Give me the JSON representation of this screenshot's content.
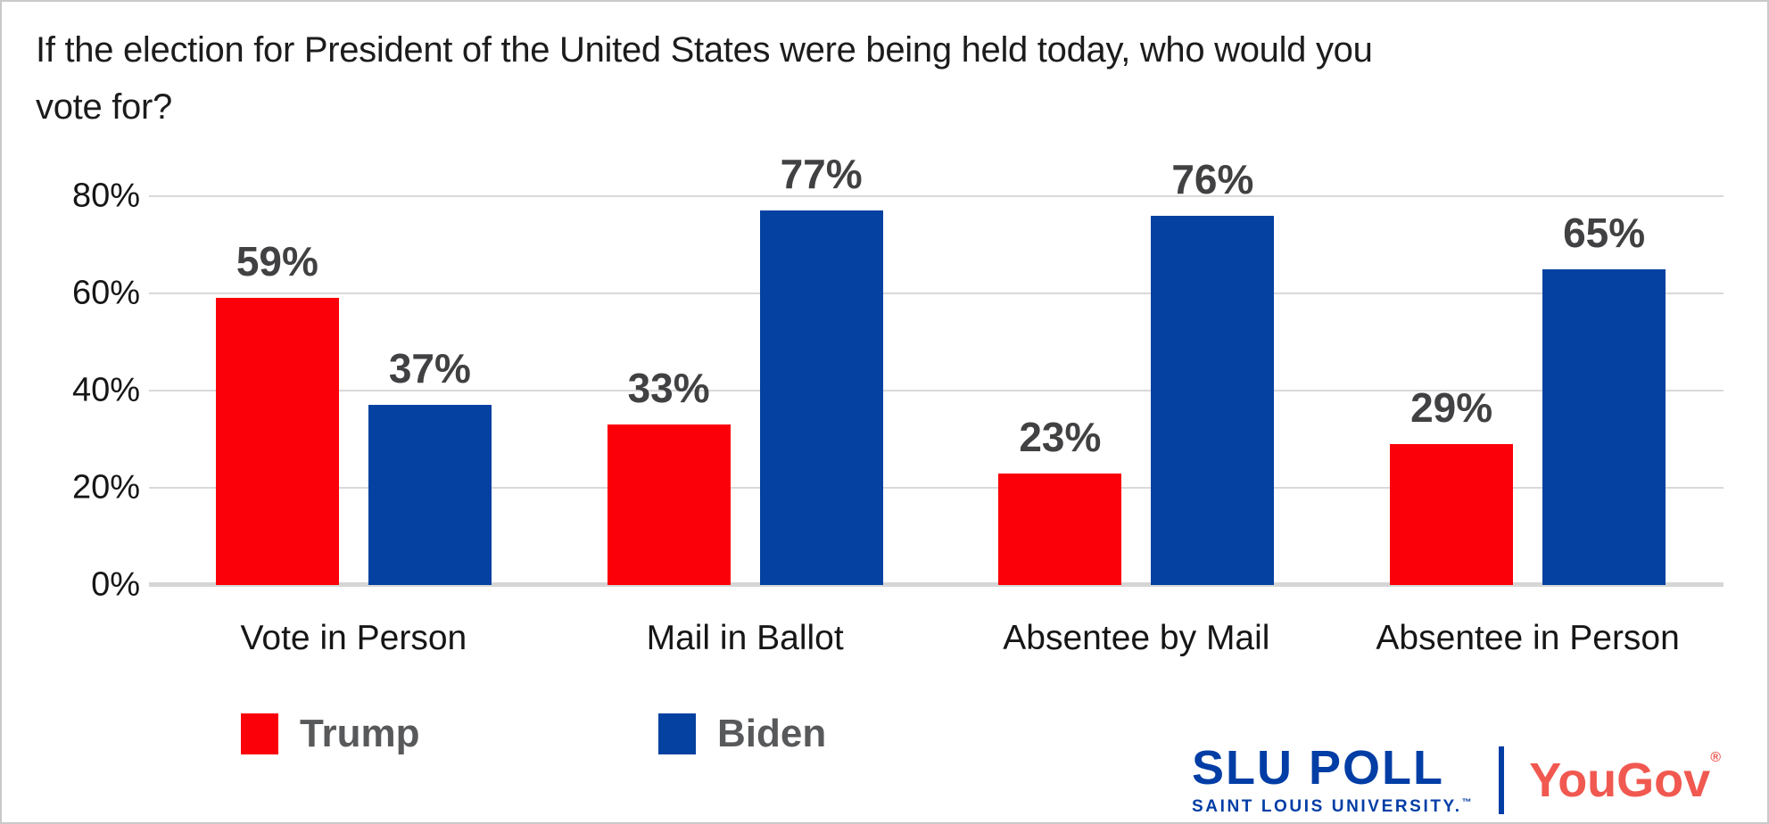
{
  "title": {
    "line1": "If the election for President of the United States were being held today, who would you",
    "line2": "vote for?"
  },
  "chart_data": {
    "type": "bar",
    "title": "If the election for President of the United States were being held today, who would you vote for?",
    "categories": [
      "Vote in Person",
      "Mail in Ballot",
      "Absentee by Mail",
      "Absentee in Person"
    ],
    "series": [
      {
        "name": "Trump",
        "color": "#FB0008",
        "values": [
          59,
          33,
          23,
          29
        ],
        "labels": [
          "59%",
          "33%",
          "23%",
          "29%"
        ]
      },
      {
        "name": "Biden",
        "color": "#0441A0",
        "values": [
          37,
          77,
          76,
          65
        ],
        "labels": [
          "37%",
          "77%",
          "76%",
          "65%"
        ]
      }
    ],
    "xlabel": "",
    "ylabel": "",
    "ylim": [
      0,
      100
    ],
    "y_ticks": [
      {
        "value": 80,
        "label": "80%"
      },
      {
        "value": 60,
        "label": "60%"
      },
      {
        "value": 40,
        "label": "40%"
      },
      {
        "value": 20,
        "label": "20%"
      },
      {
        "value": 0,
        "label": "0%"
      }
    ],
    "grid": true,
    "legend_position": "bottom-left",
    "gridline_color": "#D9D9D9",
    "data_label_color": "#414042"
  },
  "footer": {
    "slu_title": "SLU POLL",
    "slu_subtitle": "SAINT LOUIS UNIVERSITY.",
    "slu_tm": "™",
    "slu_color": "#003DA5",
    "yougov": "YouGov",
    "yougov_reg": "®",
    "yougov_color": "#F05850"
  }
}
